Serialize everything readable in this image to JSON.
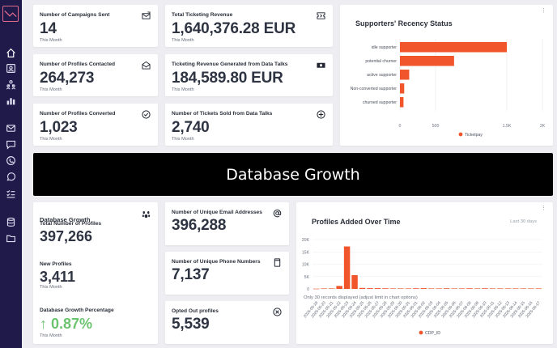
{
  "sidebar": {
    "items": [
      {
        "icon": "home-icon",
        "active": true
      },
      {
        "icon": "profile-card-icon"
      },
      {
        "icon": "users-icon"
      },
      {
        "icon": "bar-chart-icon"
      },
      {
        "icon": "mail-icon"
      },
      {
        "icon": "chat-icon"
      },
      {
        "icon": "phone-icon"
      },
      {
        "icon": "whatsapp-icon"
      },
      {
        "icon": "checklist-icon"
      },
      {
        "icon": "database-icon"
      },
      {
        "icon": "folder-icon"
      }
    ]
  },
  "kpis": {
    "campaigns_sent": {
      "label": "Number of Campaigns Sent",
      "value": "14",
      "sub": "This Month",
      "icon": "envelope-send-icon"
    },
    "ticketing_revenue": {
      "label": "Total Ticketing Revenue",
      "value": "1,640,376.28 EUR",
      "sub": "This Month",
      "icon": "ticket-icon"
    },
    "profiles_contacted": {
      "label": "Number of Profiles Contacted",
      "value": "264,273",
      "sub": "This Month",
      "icon": "open-envelope-icon"
    },
    "revenue_data_talks": {
      "label": "Ticketing Revenue Generated from Data Talks",
      "value": "184,589.80 EUR",
      "sub": "This Month",
      "icon": "cash-icon"
    },
    "profiles_converted": {
      "label": "Number of Profiles Converted",
      "value": "1,023",
      "sub": "This Month",
      "icon": "check-circle-icon"
    },
    "tickets_sold": {
      "label": "Number of Tickets Sold from Data Talks",
      "value": "2,740",
      "sub": "This Month",
      "icon": "plus-circle-icon"
    }
  },
  "banner": {
    "title": "Database Growth"
  },
  "database_growth": {
    "title": "Database Growth",
    "total_label": "Total Number of Profiles",
    "total_value": "397,266",
    "new_label": "New Profiles",
    "new_value": "3,411",
    "new_sub": "This Month",
    "pct_label": "Database Growth Percentage",
    "pct_value": "0.87%",
    "pct_sub": "This Month",
    "icon": "paw-icon"
  },
  "unique": {
    "emails": {
      "label": "Number of Unique Email Addresses",
      "value": "396,288",
      "icon": "at-icon"
    },
    "phones": {
      "label": "Number of Unique Phone Numbers",
      "value": "7,137",
      "icon": "phone-device-icon"
    },
    "opted_out": {
      "label": "Opted Out profiles",
      "value": "5,539",
      "icon": "x-circle-icon"
    }
  },
  "colors": {
    "accent": "#f1552b",
    "sidebar": "#1f1a4a",
    "green": "#6cc36f"
  },
  "chart_data": [
    {
      "type": "bar",
      "orientation": "horizontal",
      "title": "Supporters' Recency Status",
      "categories": [
        "idle supporter",
        "potential churner",
        "active supporter",
        "Non-converted supporter",
        "churned supporter"
      ],
      "series": [
        {
          "name": "Ticketpay",
          "values": [
            1500,
            760,
            130,
            60,
            50
          ]
        }
      ],
      "xticks": [
        "0",
        "500",
        "1.5K",
        "2K"
      ],
      "xlim": [
        0,
        2000
      ],
      "legend": "bottom"
    },
    {
      "type": "bar",
      "title": "Profiles Added Over Time",
      "subtitle": "Last 30 days",
      "note": "Only 30 records displayed (adjust limit in chart options)",
      "categories": [
        "2025-05-19",
        "2025-05-20",
        "2025-05-21",
        "2025-05-22",
        "2025-05-23",
        "2025-05-24",
        "2025-05-25",
        "2025-05-26",
        "2025-05-27",
        "2025-05-28",
        "2025-05-29",
        "2025-05-30",
        "2025-05-31",
        "2025-06-01",
        "2025-06-02",
        "2025-06-03",
        "2025-06-04",
        "2025-06-05",
        "2025-06-06",
        "2025-06-07",
        "2025-06-08",
        "2025-06-09",
        "2025-06-10",
        "2025-06-11",
        "2025-06-12",
        "2025-06-13",
        "2025-06-14",
        "2025-06-15",
        "2025-06-16",
        "2025-06-17"
      ],
      "series": [
        {
          "name": "CDP_ID",
          "values": [
            100,
            200,
            200,
            1200,
            17200,
            5600,
            400,
            300,
            300,
            250,
            200,
            200,
            200,
            250,
            300,
            200,
            200,
            250,
            200,
            200,
            250,
            200,
            250,
            200,
            200,
            200,
            200,
            200,
            200,
            200
          ]
        }
      ],
      "yticks": [
        "0",
        "5K",
        "10K",
        "15K",
        "20K"
      ],
      "ylim": [
        0,
        20000
      ],
      "legend": "bottom"
    }
  ]
}
